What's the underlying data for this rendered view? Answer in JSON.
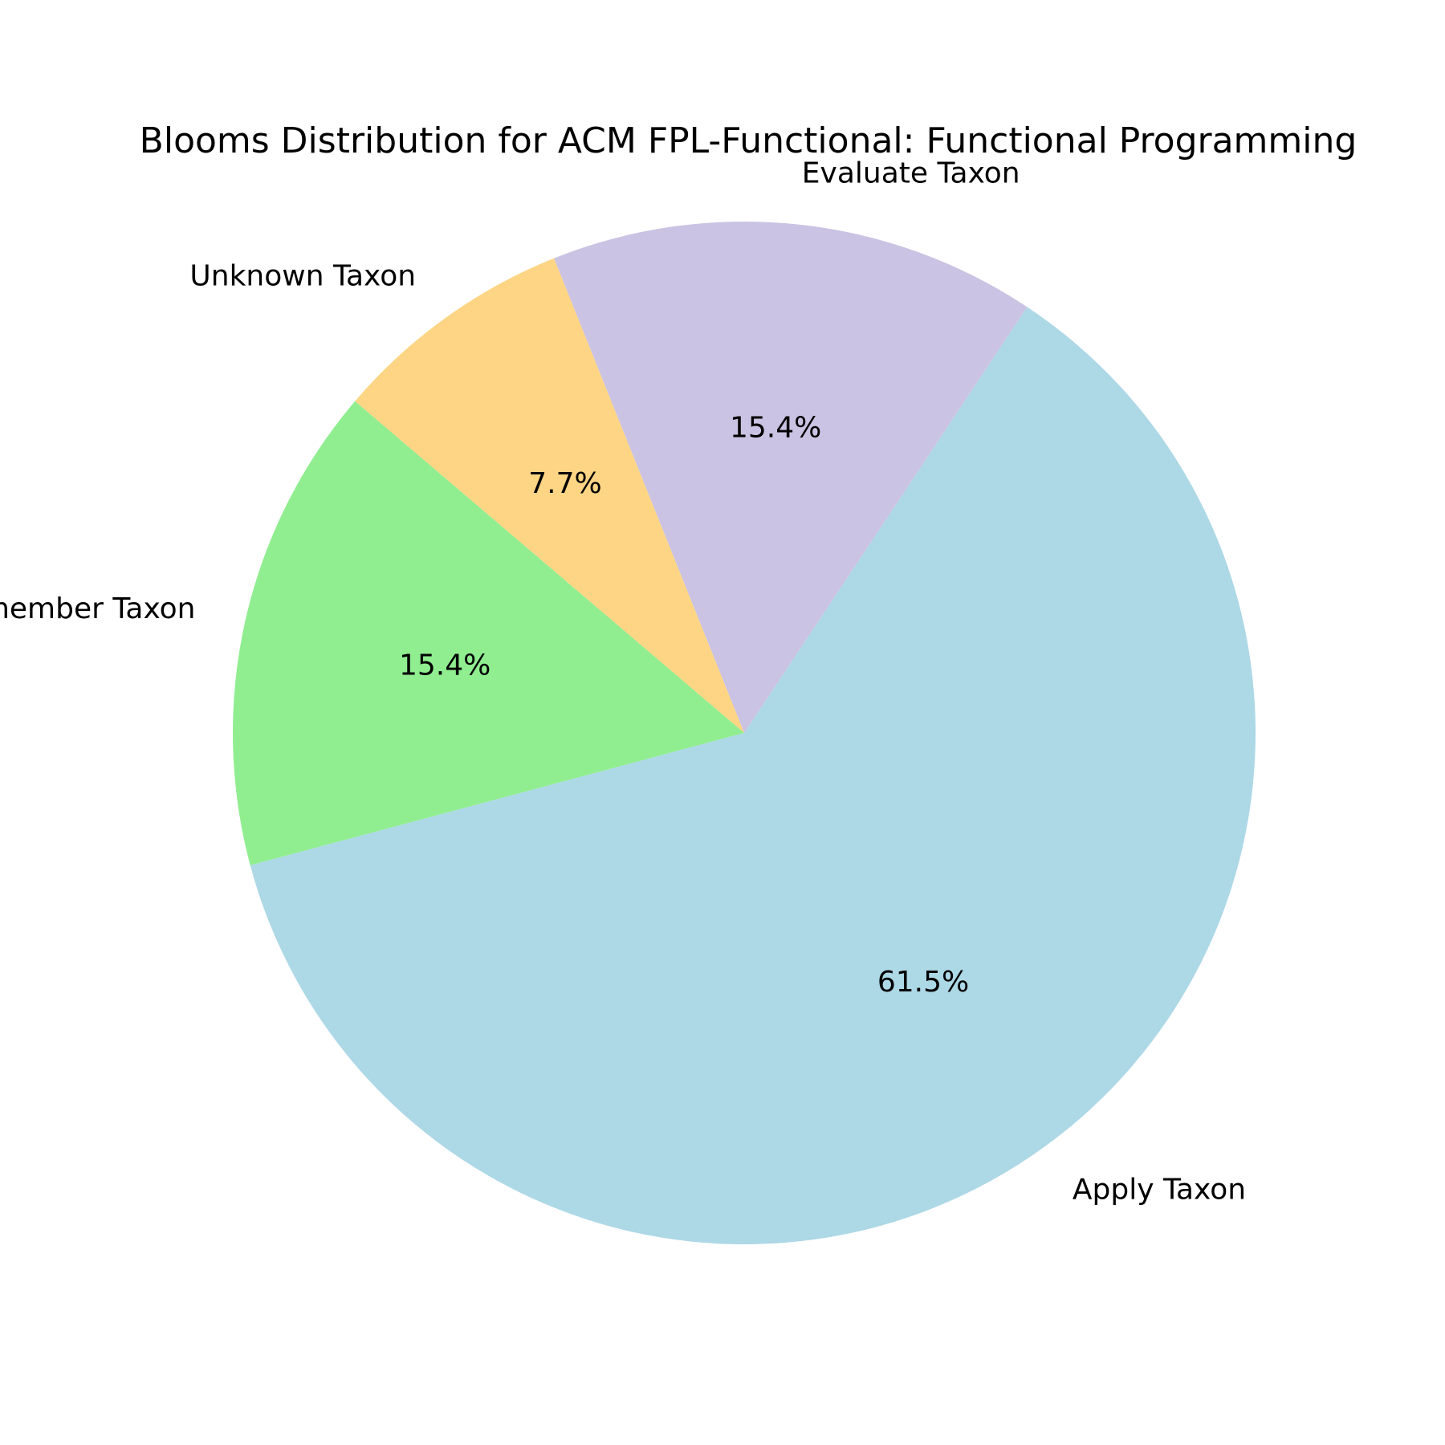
{
  "chart_data": {
    "type": "pie",
    "title": "Blooms Distribution for ACM FPL-Functional: Functional Programming",
    "start_angle_deg": 195,
    "direction": "counterclockwise",
    "slices": [
      {
        "label": "Apply Taxon",
        "value": 61.5,
        "pct_label": "61.5%",
        "color": "#add8e6"
      },
      {
        "label": "Evaluate Taxon",
        "value": 15.4,
        "pct_label": "15.4%",
        "color": "#cbc3e3"
      },
      {
        "label": "Unknown Taxon",
        "value": 7.7,
        "pct_label": "7.7%",
        "color": "#fed584"
      },
      {
        "label": "Remember Taxon",
        "value": 15.4,
        "pct_label": "15.4%",
        "color": "#90ee90"
      }
    ]
  }
}
